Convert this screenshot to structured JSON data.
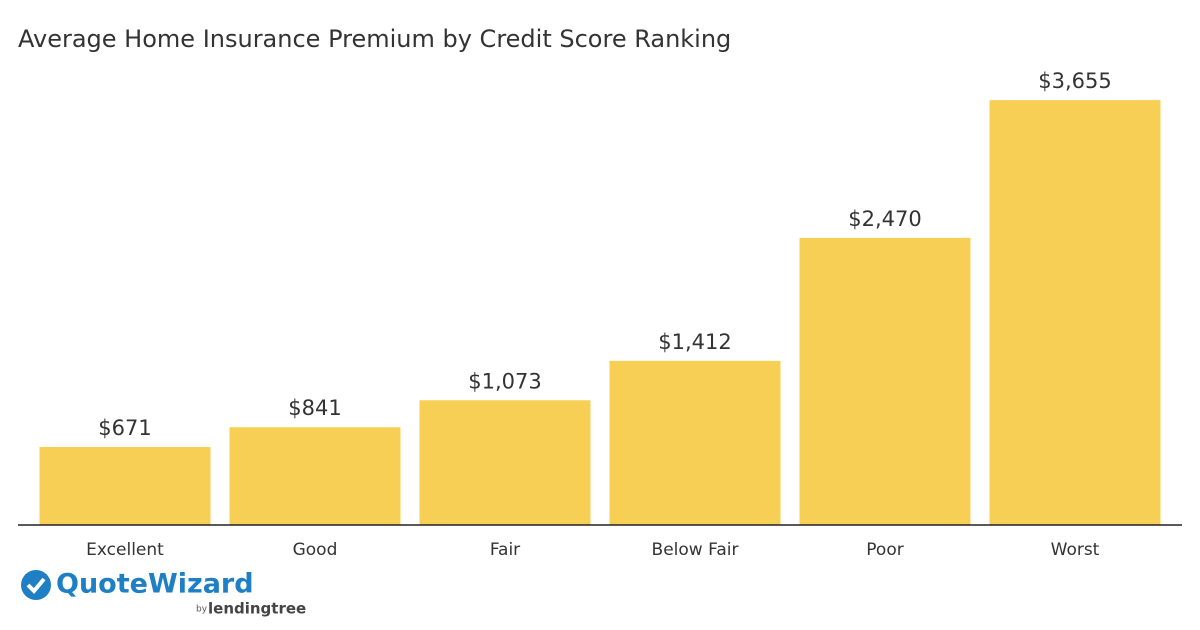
{
  "chart_data": {
    "type": "bar",
    "title": "Average Home Insurance Premium by Credit Score Ranking",
    "categories": [
      "Excellent",
      "Good",
      "Fair",
      "Below Fair",
      "Poor",
      "Worst"
    ],
    "values": [
      671,
      841,
      1073,
      1412,
      2470,
      3655
    ],
    "value_labels": [
      "$671",
      "$841",
      "$1,073",
      "$1,412",
      "$2,470",
      "$3,655"
    ],
    "color": "#f7cf55",
    "ylim": [
      0,
      4000
    ]
  },
  "brand": {
    "name": "QuoteWizard",
    "by": "by",
    "sub": "lendingtree"
  }
}
